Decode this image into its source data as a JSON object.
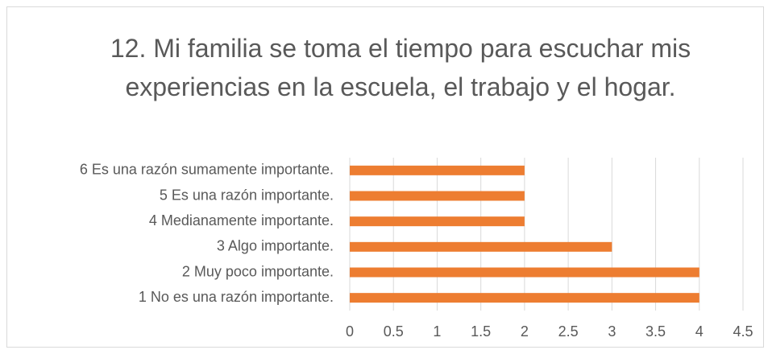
{
  "chart_data": {
    "type": "bar",
    "orientation": "horizontal",
    "title": "12. Mi familia se toma el tiempo para escuchar mis experiencias en la escuela, el trabajo y el hogar.",
    "categories": [
      "1 No es una razón importante.",
      "2 Muy poco importante.",
      "3 Algo importante.",
      "4 Medianamente importante.",
      "5 Es una razón importante.",
      "6 Es una razón sumamente importante."
    ],
    "values": [
      4,
      4,
      3,
      2,
      2,
      2
    ],
    "color": "#ed7d31",
    "xlim": [
      0,
      4.5
    ],
    "xticks": [
      0,
      0.5,
      1,
      1.5,
      2,
      2.5,
      3,
      3.5,
      4,
      4.5
    ],
    "grid": true
  }
}
